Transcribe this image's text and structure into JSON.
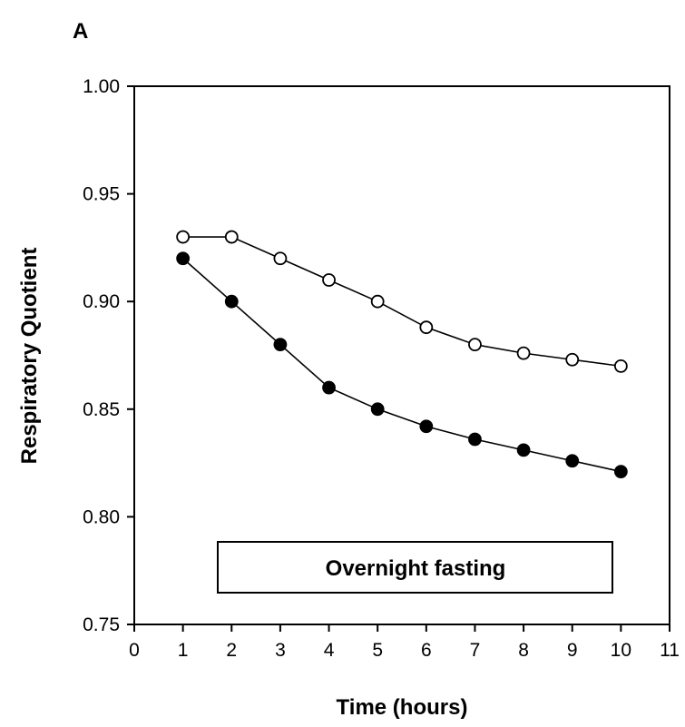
{
  "chart_data": {
    "type": "line",
    "panel_label": "A",
    "title": "",
    "xlabel": "Time (hours)",
    "ylabel": "Respiratory Quotient",
    "xlim": [
      0,
      11
    ],
    "ylim": [
      0.75,
      1.0
    ],
    "x_ticks": [
      0,
      1,
      2,
      3,
      4,
      5,
      6,
      7,
      8,
      9,
      10,
      11
    ],
    "y_ticks": [
      0.75,
      0.8,
      0.85,
      0.9,
      0.95,
      1.0
    ],
    "y_tick_labels": [
      "0.75",
      "0.80",
      "0.85",
      "0.90",
      "0.95",
      "1.00"
    ],
    "x_tick_labels": [
      "0",
      "1",
      "2",
      "3",
      "4",
      "5",
      "6",
      "7",
      "8",
      "9",
      "10",
      "11"
    ],
    "annotation": "Overnight fasting",
    "grid": false,
    "series": [
      {
        "marker": "open-circle",
        "color": "#000000",
        "fill": "#ffffff",
        "x": [
          1,
          2,
          3,
          4,
          5,
          6,
          7,
          8,
          9,
          10
        ],
        "y": [
          0.93,
          0.93,
          0.92,
          0.91,
          0.9,
          0.888,
          0.88,
          0.876,
          0.873,
          0.87
        ]
      },
      {
        "marker": "filled-circle",
        "color": "#000000",
        "fill": "#000000",
        "x": [
          1,
          2,
          3,
          4,
          5,
          6,
          7,
          8,
          9,
          10
        ],
        "y": [
          0.92,
          0.9,
          0.88,
          0.86,
          0.85,
          0.842,
          0.836,
          0.831,
          0.826,
          0.821
        ]
      }
    ]
  }
}
